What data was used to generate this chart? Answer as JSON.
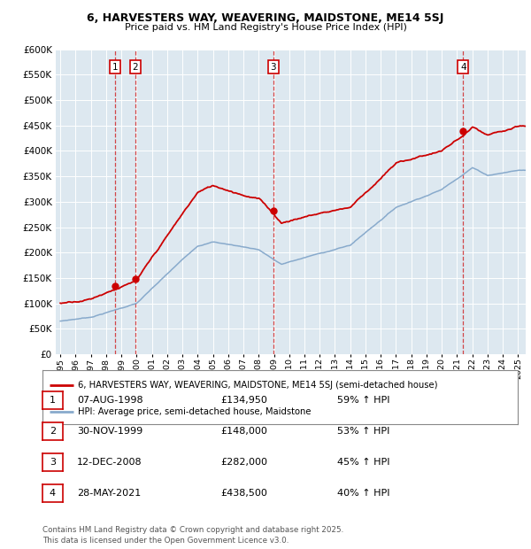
{
  "title1": "6, HARVESTERS WAY, WEAVERING, MAIDSTONE, ME14 5SJ",
  "title2": "Price paid vs. HM Land Registry's House Price Index (HPI)",
  "legend_line1": "6, HARVESTERS WAY, WEAVERING, MAIDSTONE, ME14 5SJ (semi-detached house)",
  "legend_line2": "HPI: Average price, semi-detached house, Maidstone",
  "sale_dates": [
    1998.6,
    1999.9,
    2008.95,
    2021.4
  ],
  "sale_prices": [
    134950,
    148000,
    282000,
    438500
  ],
  "sale_labels": [
    "1",
    "2",
    "3",
    "4"
  ],
  "table": [
    {
      "num": "1",
      "date": "07-AUG-1998",
      "price": "£134,950",
      "hpi": "59% ↑ HPI"
    },
    {
      "num": "2",
      "date": "30-NOV-1999",
      "price": "£148,000",
      "hpi": "53% ↑ HPI"
    },
    {
      "num": "3",
      "date": "12-DEC-2008",
      "price": "£282,000",
      "hpi": "45% ↑ HPI"
    },
    {
      "num": "4",
      "date": "28-MAY-2021",
      "price": "£438,500",
      "hpi": "40% ↑ HPI"
    }
  ],
  "footer": "Contains HM Land Registry data © Crown copyright and database right 2025.\nThis data is licensed under the Open Government Licence v3.0.",
  "ylim": [
    0,
    600000
  ],
  "yticks": [
    0,
    50000,
    100000,
    150000,
    200000,
    250000,
    300000,
    350000,
    400000,
    450000,
    500000,
    550000,
    600000
  ],
  "ylabels": [
    "£0",
    "£50K",
    "£100K",
    "£150K",
    "£200K",
    "£250K",
    "£300K",
    "£350K",
    "£400K",
    "£450K",
    "£500K",
    "£550K",
    "£600K"
  ],
  "red_line_color": "#cc0000",
  "blue_line_color": "#88aacc",
  "vline_color": "#cc0000",
  "plot_bg": "#dde8f0"
}
